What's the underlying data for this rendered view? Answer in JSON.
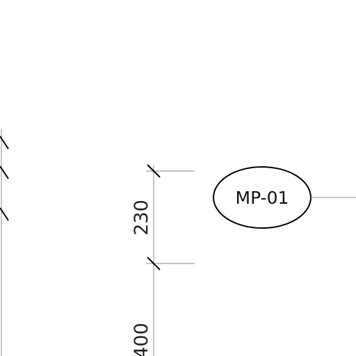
{
  "drawing": {
    "line_color": "#000000",
    "extension_color": "#8a8a8a",
    "dimensions": [
      {
        "value": "230"
      },
      {
        "value": "400"
      }
    ],
    "tag": {
      "label": "MP-01"
    }
  }
}
